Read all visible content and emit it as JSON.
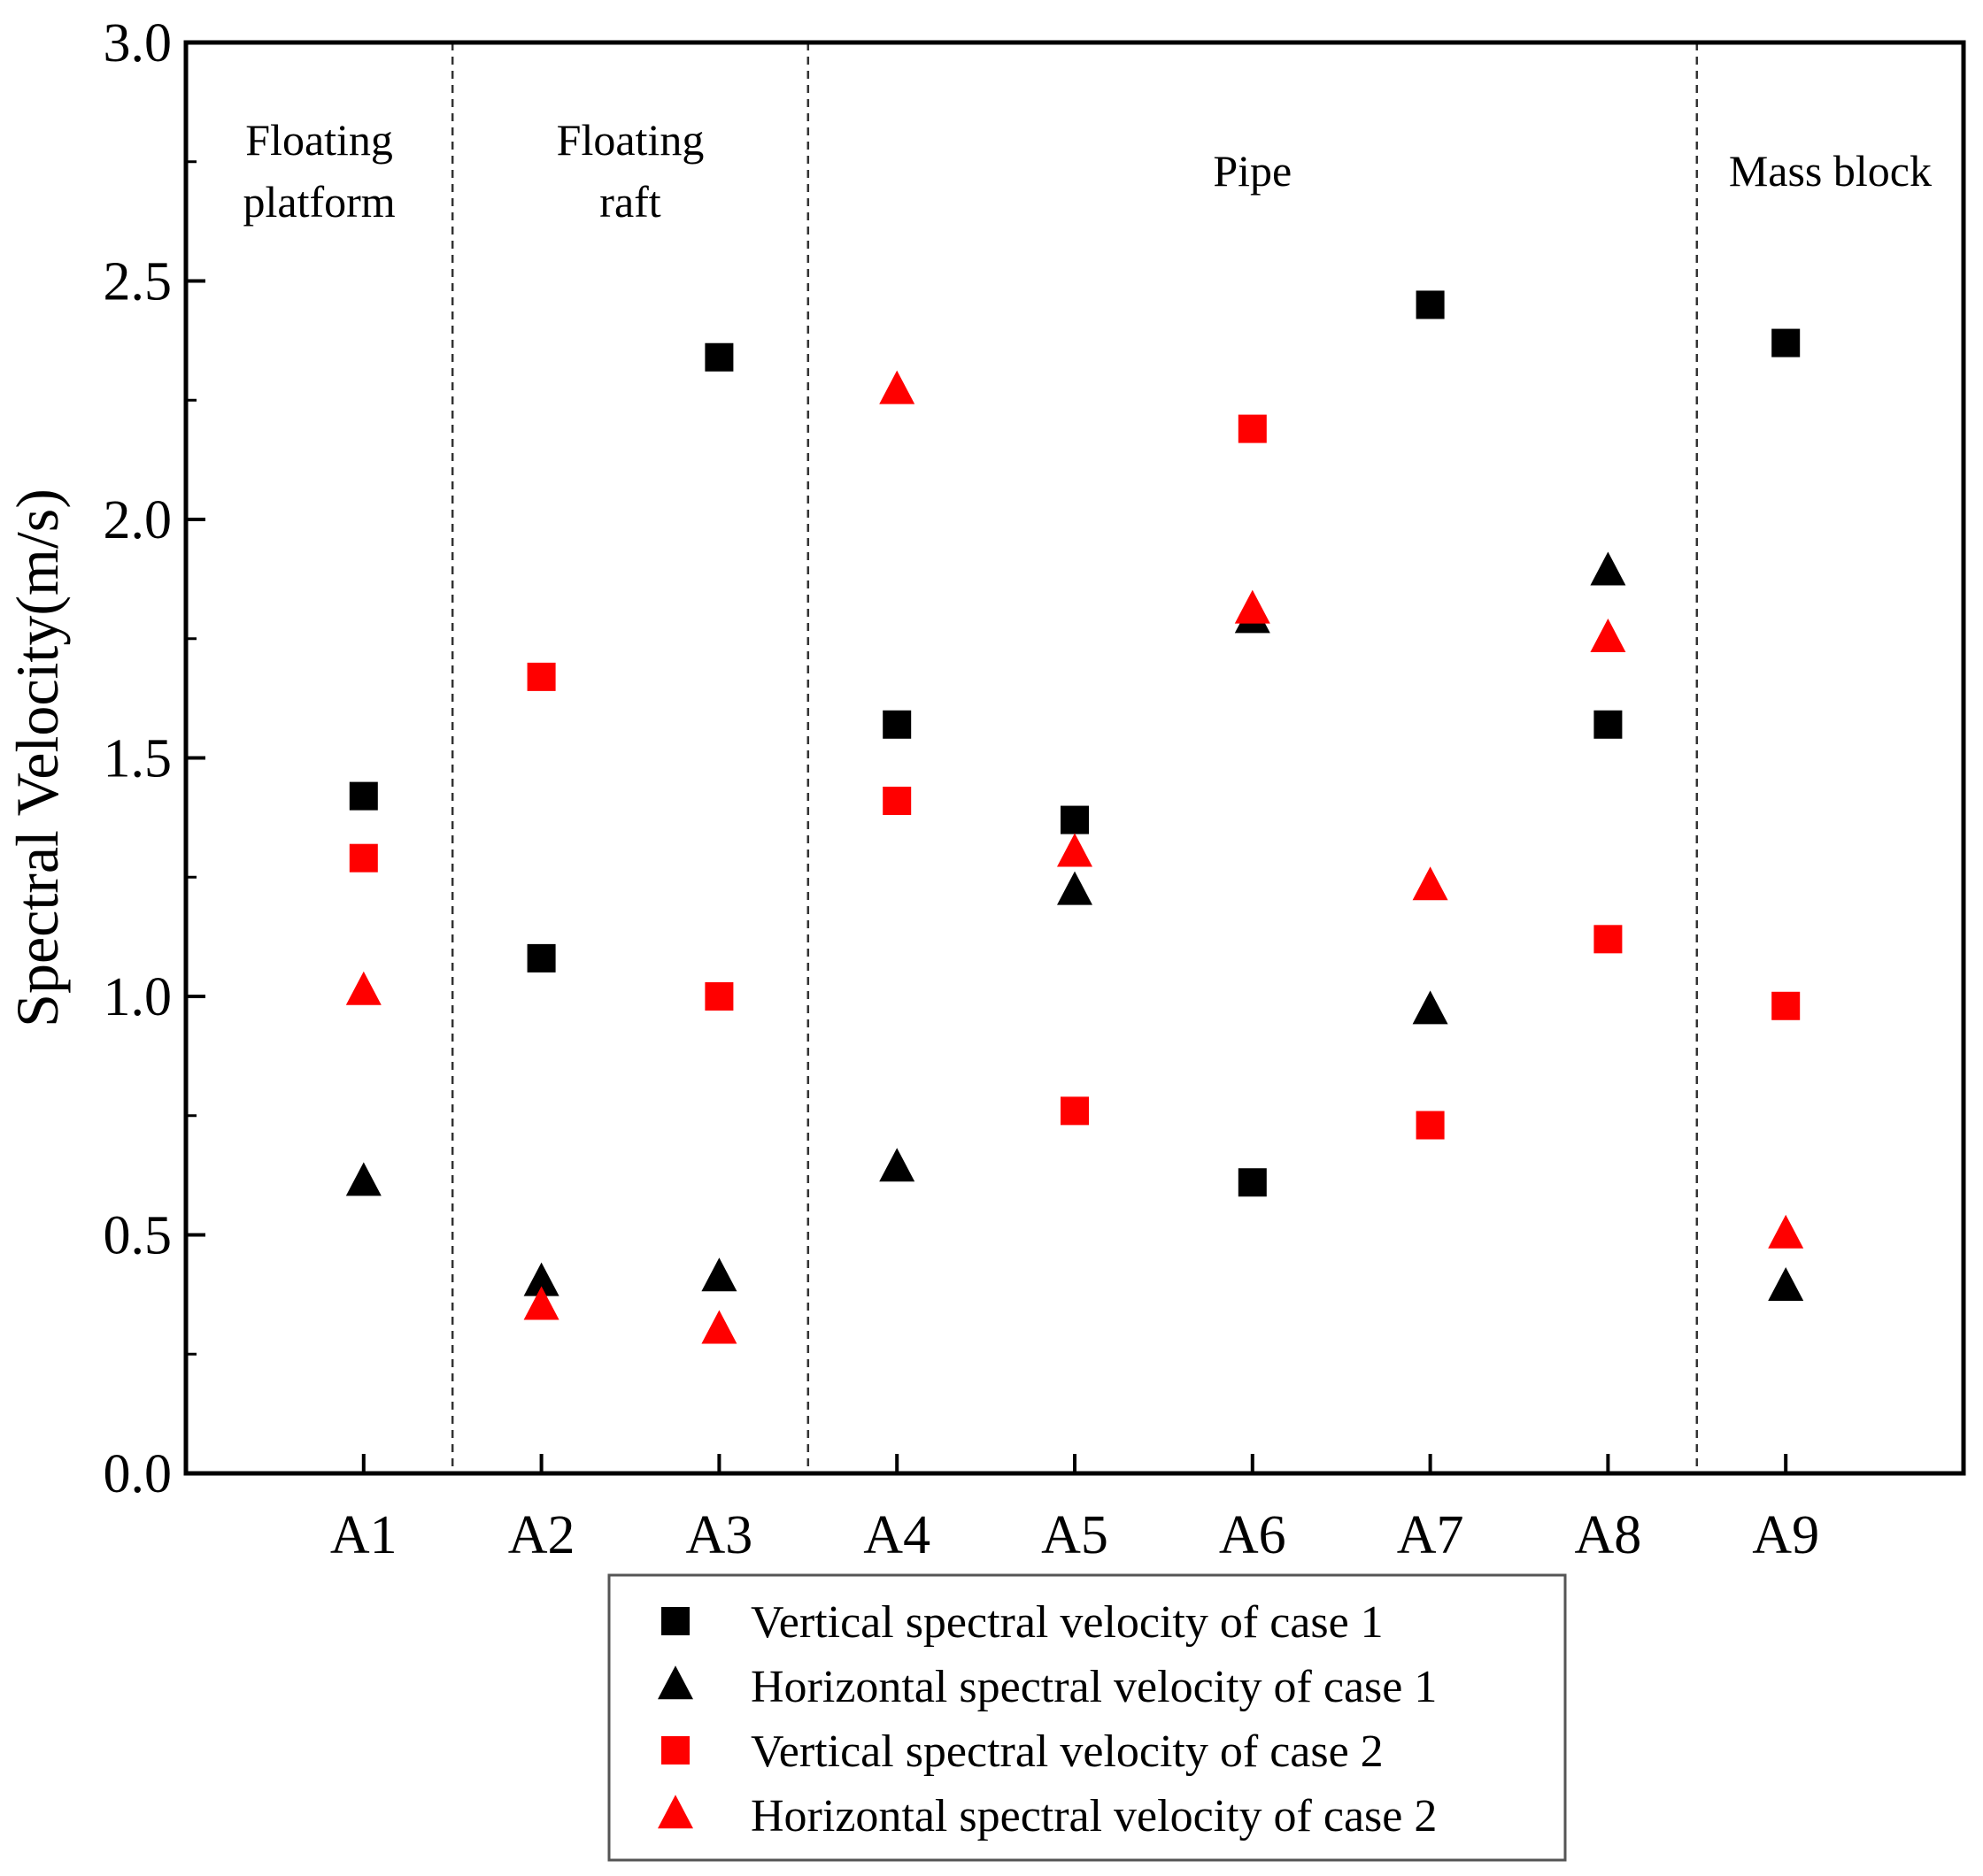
{
  "chart_data": {
    "type": "scatter",
    "title": "",
    "xlabel": "",
    "ylabel": "Spectral Velocity(m/s)",
    "ylim": [
      0,
      3
    ],
    "yticks": [
      "0.0",
      "0.5",
      "1.0",
      "1.5",
      "2.0",
      "2.5",
      "3.0"
    ],
    "categories": [
      "A1",
      "A2",
      "A3",
      "A4",
      "A5",
      "A6",
      "A7",
      "A8",
      "A9"
    ],
    "regions": [
      {
        "label_lines": [
          "Floating",
          "platform"
        ],
        "start": 0,
        "end": 0
      },
      {
        "label_lines": [
          "Floating",
          "raft"
        ],
        "start": 1,
        "end": 2
      },
      {
        "label_lines": [
          "Pipe"
        ],
        "start": 3,
        "end": 7
      },
      {
        "label_lines": [
          "Mass block"
        ],
        "start": 8,
        "end": 8
      }
    ],
    "series": [
      {
        "name": "Vertical spectral velocity of case 1",
        "marker": "square",
        "color": "#000000",
        "values": [
          1.42,
          1.08,
          2.34,
          1.57,
          1.37,
          0.61,
          2.45,
          1.57,
          2.37
        ]
      },
      {
        "name": "Horizontal spectral velocity of case 1",
        "marker": "triangle",
        "color": "#000000",
        "values": [
          0.61,
          0.4,
          0.41,
          0.64,
          1.22,
          1.79,
          0.97,
          1.89,
          0.39
        ]
      },
      {
        "name": "Vertical spectral velocity of case 2",
        "marker": "square",
        "color": "#ff0000",
        "values": [
          1.29,
          1.67,
          1.0,
          1.41,
          0.76,
          2.19,
          0.73,
          1.12,
          0.98
        ]
      },
      {
        "name": "Horizontal spectral velocity of case 2",
        "marker": "triangle",
        "color": "#ff0000",
        "values": [
          1.01,
          0.35,
          0.3,
          2.27,
          1.3,
          1.81,
          1.23,
          1.75,
          0.5
        ]
      }
    ]
  }
}
